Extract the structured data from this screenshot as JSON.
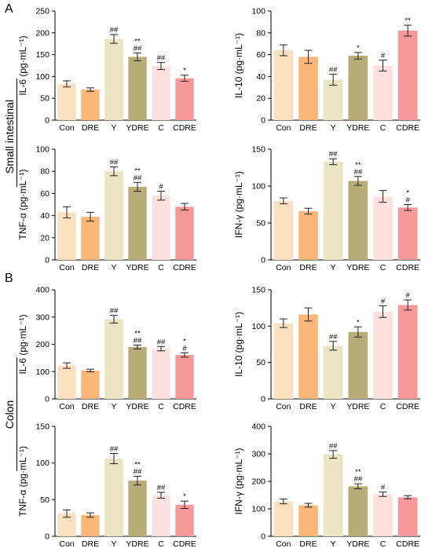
{
  "panels": [
    {
      "letter": "A"
    },
    {
      "letter": "B"
    }
  ],
  "rows": [
    "Small intestinal",
    "Colon"
  ],
  "colors": [
    "#fde0c0",
    "#f9b879",
    "#ebe5c3",
    "#b8ad78",
    "#fde1de",
    "#f7999a"
  ],
  "chart_data": [
    {
      "type": "bar",
      "ylabel": "IL-6 (pg·mL⁻¹)",
      "ylim": [
        0,
        250
      ],
      "yticks": [
        0,
        50,
        100,
        150,
        200,
        250
      ],
      "categories": [
        "Con",
        "DRE",
        "Y",
        "YDRE",
        "C",
        "CDRE"
      ],
      "values": [
        83,
        70,
        186,
        145,
        124,
        96
      ],
      "errors": [
        7,
        4,
        10,
        9,
        8,
        7
      ],
      "annotations": [
        "",
        "",
        "##",
        "**\n##",
        "##",
        "*"
      ]
    },
    {
      "type": "bar",
      "ylabel": "IL-10 (pg·mL⁻¹)",
      "ylim": [
        0,
        100
      ],
      "yticks": [
        0,
        20,
        40,
        60,
        80,
        100
      ],
      "categories": [
        "Con",
        "DRE",
        "Y",
        "YDRE",
        "C",
        "CDRE"
      ],
      "values": [
        64,
        58,
        37,
        59,
        50,
        82
      ],
      "errors": [
        5,
        6,
        5,
        3,
        5,
        5
      ],
      "annotations": [
        "",
        "",
        "##",
        "*",
        "#",
        "**"
      ]
    },
    {
      "type": "bar",
      "ylabel": "TNF-α (pg·mL⁻¹)",
      "ylim": [
        0,
        100
      ],
      "yticks": [
        0,
        20,
        40,
        60,
        80,
        100
      ],
      "categories": [
        "Con",
        "DRE",
        "Y",
        "YDRE",
        "C",
        "CDRE"
      ],
      "values": [
        43,
        39,
        80,
        66,
        58,
        48
      ],
      "errors": [
        5,
        4,
        4,
        4,
        4,
        3
      ],
      "annotations": [
        "",
        "",
        "##",
        "**\n##",
        "#",
        ""
      ]
    },
    {
      "type": "bar",
      "ylabel": "IFN-γ (pg·mL⁻¹)",
      "ylim": [
        0,
        150
      ],
      "yticks": [
        0,
        50,
        100,
        150
      ],
      "categories": [
        "Con",
        "DRE",
        "Y",
        "YDRE",
        "C",
        "CDRE"
      ],
      "values": [
        80,
        66,
        133,
        107,
        86,
        71
      ],
      "errors": [
        4,
        4,
        4,
        6,
        8,
        4
      ],
      "annotations": [
        "",
        "",
        "##",
        "**\n##",
        "",
        "*\n#"
      ]
    },
    {
      "type": "bar",
      "ylabel": "IL-6 (pg·mL⁻¹)",
      "ylim": [
        0,
        400
      ],
      "yticks": [
        0,
        100,
        200,
        300,
        400
      ],
      "categories": [
        "Con",
        "DRE",
        "Y",
        "YDRE",
        "C",
        "CDRE"
      ],
      "values": [
        122,
        104,
        292,
        190,
        184,
        161
      ],
      "errors": [
        10,
        5,
        14,
        7,
        8,
        8
      ],
      "annotations": [
        "",
        "",
        "##",
        "**\n##",
        "##",
        "*\n#"
      ]
    },
    {
      "type": "bar",
      "ylabel": "IL-10 (pg·mL⁻¹)",
      "ylim": [
        0,
        150
      ],
      "yticks": [
        0,
        50,
        100,
        150
      ],
      "categories": [
        "Con",
        "DRE",
        "Y",
        "YDRE",
        "C",
        "CDRE"
      ],
      "values": [
        104,
        116,
        73,
        92,
        120,
        129
      ],
      "errors": [
        6,
        9,
        6,
        7,
        8,
        7
      ],
      "annotations": [
        "",
        "",
        "##",
        "*",
        "#",
        "#"
      ]
    },
    {
      "type": "bar",
      "ylabel": "TNF-α (pg·mL⁻¹)",
      "ylim": [
        0,
        150
      ],
      "yticks": [
        0,
        50,
        100,
        150
      ],
      "categories": [
        "Con",
        "DRE",
        "Y",
        "YDRE",
        "C",
        "CDRE"
      ],
      "values": [
        31,
        29,
        106,
        76,
        56,
        43
      ],
      "errors": [
        5,
        3,
        7,
        6,
        4,
        5
      ],
      "annotations": [
        "",
        "",
        "##",
        "**\n##",
        "##",
        "*"
      ]
    },
    {
      "type": "bar",
      "ylabel": "IFN-γ (pg·mL⁻¹)",
      "ylim": [
        0,
        400
      ],
      "yticks": [
        0,
        100,
        200,
        300,
        400
      ],
      "categories": [
        "Con",
        "DRE",
        "Y",
        "YDRE",
        "C",
        "CDRE"
      ],
      "values": [
        127,
        113,
        298,
        182,
        153,
        142
      ],
      "errors": [
        9,
        7,
        14,
        9,
        8,
        6
      ],
      "annotations": [
        "",
        "",
        "##",
        "**\n##",
        "#",
        ""
      ]
    }
  ]
}
